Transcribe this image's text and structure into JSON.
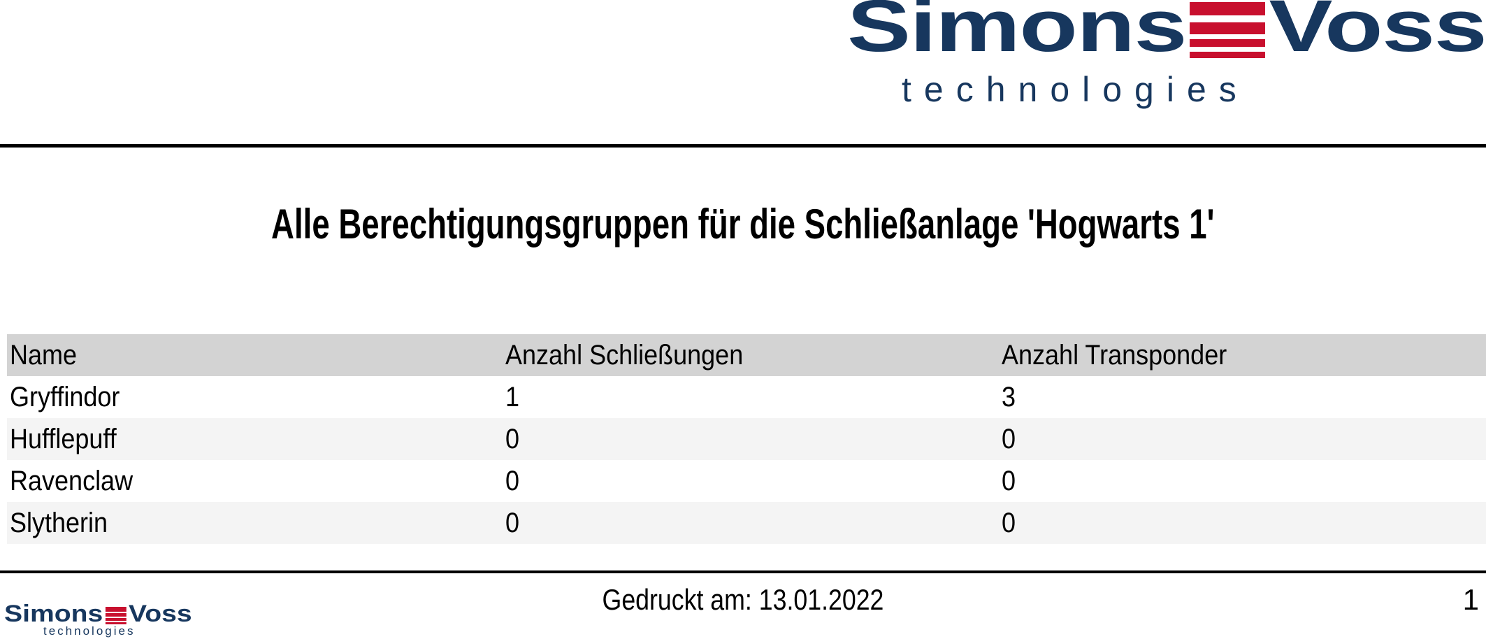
{
  "colors": {
    "navy": "#17375e",
    "red": "#c8102e",
    "header-gray": "#d3d3d3",
    "zebra-gray": "#f4f4f4",
    "rule": "#000000",
    "paper": "#ffffff"
  },
  "brand": {
    "word_part1": "Simons",
    "word_part2": "Voss",
    "subtitle": "technologies",
    "stripes_icon": "logo-stripes-icon"
  },
  "title": {
    "text": "Alle Berechtigungsgruppen für die Schließanlage 'Hogwarts 1'"
  },
  "table": {
    "columns": [
      "Name",
      "Anzahl Schließungen",
      "Anzahl Transponder"
    ],
    "rows": [
      {
        "name": "Gryffindor",
        "locks": "1",
        "transponders": "3"
      },
      {
        "name": "Hufflepuff",
        "locks": "0",
        "transponders": "0"
      },
      {
        "name": "Ravenclaw",
        "locks": "0",
        "transponders": "0"
      },
      {
        "name": "Slytherin",
        "locks": "0",
        "transponders": "0"
      }
    ]
  },
  "footer": {
    "printed_label": "Gedruckt am: 13.01.2022",
    "page_number": "1"
  }
}
